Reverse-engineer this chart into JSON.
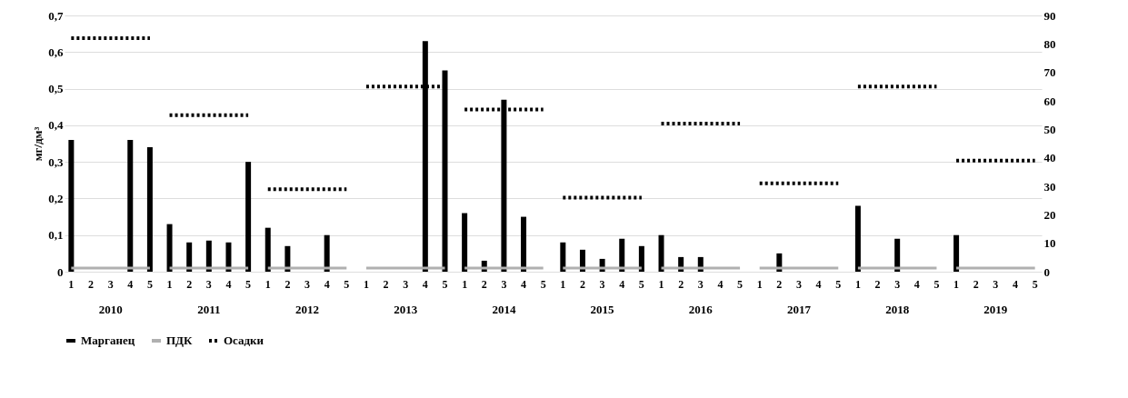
{
  "chart_data": {
    "type": "bar",
    "ylabel": "мг/дм³",
    "ylim": [
      0,
      0.7
    ],
    "yticks": [
      0,
      {
        "value": 0.1,
        "label": "0,1"
      },
      {
        "value": 0.2,
        "label": "0,2"
      },
      {
        "value": 0.3,
        "label": "0,3"
      },
      {
        "value": 0.4,
        "label": "0,4"
      },
      {
        "value": 0.5,
        "label": "0,5"
      },
      {
        "value": 0.6,
        "label": "0,6"
      },
      {
        "value": 0.7,
        "label": "0,7"
      }
    ],
    "y2lim": [
      0,
      90
    ],
    "y2ticks": [
      0,
      10,
      20,
      30,
      40,
      50,
      60,
      70,
      80,
      90
    ],
    "grid": "y",
    "legend": "bottom",
    "categories": [
      "1",
      "2",
      "3",
      "4",
      "5",
      "1",
      "2",
      "3",
      "4",
      "5",
      "1",
      "2",
      "3",
      "4",
      "5",
      "1",
      "2",
      "3",
      "4",
      "5",
      "1",
      "2",
      "3",
      "4",
      "5",
      "1",
      "2",
      "3",
      "4",
      "5",
      "1",
      "2",
      "3",
      "4",
      "5",
      "1",
      "2",
      "3",
      "4",
      "5",
      "1",
      "2",
      "3",
      "4",
      "5",
      "1",
      "2",
      "3",
      "4",
      "5"
    ],
    "annotations": [
      "2010",
      "2011",
      "2012",
      "2013",
      "2014",
      "2015",
      "2016",
      "2017",
      "2018",
      "2019"
    ],
    "series": [
      {
        "name": "Марганец",
        "color": "#000000",
        "values": [
          0.36,
          0,
          0,
          0.36,
          0.34,
          0.13,
          0.08,
          0.085,
          0.08,
          0.3,
          0.12,
          0.07,
          0,
          0.1,
          0,
          0,
          0,
          0,
          0.63,
          0.55,
          0.16,
          0.03,
          0.47,
          0.15,
          0,
          0.08,
          0.06,
          0.035,
          0.09,
          0.07,
          0.1,
          0.04,
          0.04,
          0,
          0,
          0,
          0.05,
          0,
          0,
          0,
          0.18,
          0,
          0.09,
          0,
          0,
          0.1,
          0,
          0,
          0,
          0
        ]
      },
      {
        "name": "ПДК",
        "type": "line",
        "color": "#b0b0b0",
        "values": [
          0.01,
          0.01,
          0.01,
          0.01,
          0.01,
          0.01,
          0.01,
          0.01,
          0.01,
          0.01,
          0.01,
          0.01,
          0.01,
          0.01,
          0.01,
          0.01,
          0.01,
          0.01,
          0.01,
          0.01,
          0.01,
          0.01,
          0.01,
          0.01,
          0.01,
          0.01,
          0.01,
          0.01,
          0.01,
          0.01,
          0.01,
          0.01,
          0.01,
          0.01,
          0.01,
          0.01,
          0.01,
          0.01,
          0.01,
          0.01,
          0.01,
          0.01,
          0.01,
          0.01,
          0.01,
          0.01,
          0.01,
          0.01,
          0.01,
          0.01
        ]
      },
      {
        "name": "Осадки",
        "type": "line",
        "axis": "y2",
        "line_style": "dotted",
        "color": "#000000",
        "values": [
          82,
          82,
          82,
          82,
          82,
          55,
          55,
          55,
          55,
          55,
          29,
          29,
          29,
          29,
          29,
          65,
          65,
          65,
          65,
          65,
          57,
          57,
          57,
          57,
          57,
          26,
          26,
          26,
          26,
          26,
          52,
          52,
          52,
          52,
          52,
          31,
          31,
          31,
          31,
          31,
          65,
          65,
          65,
          65,
          65,
          39,
          39,
          39,
          39,
          39
        ]
      }
    ]
  }
}
